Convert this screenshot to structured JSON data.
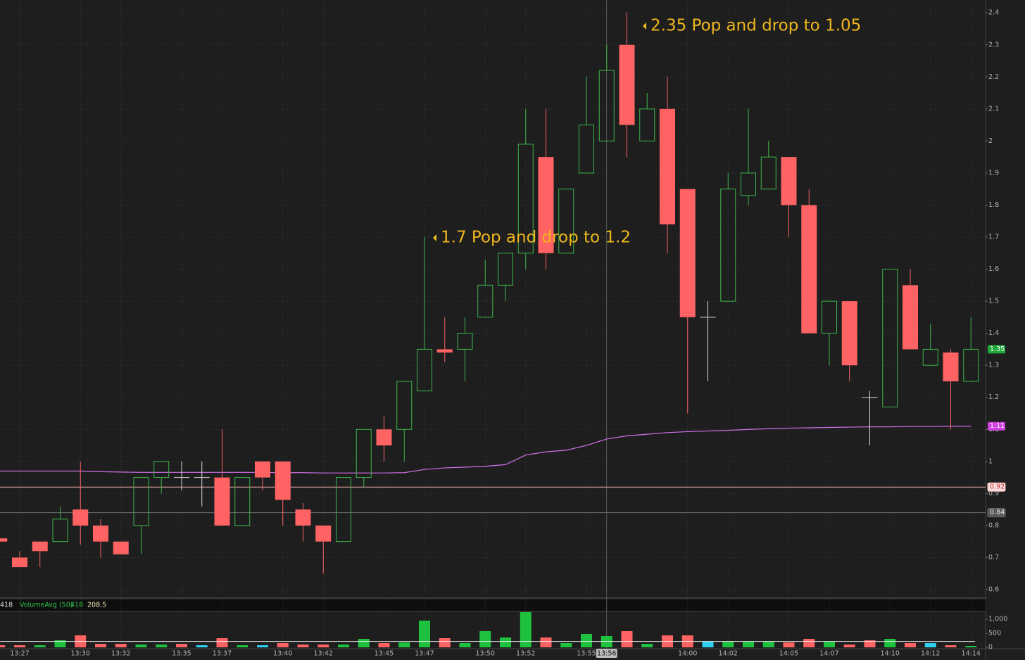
{
  "chart_data": {
    "type": "candlestick",
    "categories": [
      null,
      "13:27",
      null,
      null,
      "13:30",
      null,
      "13:32",
      null,
      null,
      "13:35",
      null,
      "13:37",
      null,
      null,
      "13:40",
      null,
      "13:42",
      null,
      null,
      "13:45",
      null,
      "13:47",
      null,
      null,
      "13:50",
      null,
      "13:52",
      null,
      null,
      "13:55",
      "13:56",
      null,
      null,
      null,
      "14:00",
      null,
      "14:02",
      null,
      null,
      "14:05",
      null,
      "14:07",
      null,
      null,
      "14:10",
      null,
      "14:12",
      null,
      "14:14"
    ],
    "open": [
      0.76,
      0.7,
      0.75,
      0.75,
      0.85,
      0.8,
      0.75,
      0.8,
      0.95,
      0.95,
      0.95,
      0.95,
      0.8,
      1.0,
      1.0,
      0.85,
      0.8,
      0.75,
      0.95,
      1.1,
      1.1,
      1.22,
      1.35,
      1.35,
      1.45,
      1.55,
      1.65,
      1.95,
      1.65,
      1.9,
      2.0,
      2.3,
      2.0,
      2.1,
      1.85,
      1.45,
      1.5,
      1.83,
      1.85,
      1.95,
      1.8,
      1.4,
      1.5,
      1.2,
      1.17,
      1.55,
      1.3,
      1.34,
      1.25
    ],
    "high": [
      0.76,
      0.72,
      0.75,
      0.86,
      1.0,
      0.82,
      0.75,
      0.95,
      1.0,
      1.0,
      1.0,
      1.1,
      0.95,
      1.0,
      1.0,
      0.87,
      0.8,
      0.95,
      1.1,
      1.14,
      1.25,
      1.7,
      1.45,
      1.45,
      1.63,
      1.65,
      2.1,
      2.1,
      1.85,
      2.2,
      2.3,
      2.4,
      2.15,
      2.2,
      1.85,
      1.5,
      1.9,
      2.1,
      2.0,
      1.95,
      1.85,
      1.5,
      1.5,
      1.22,
      1.6,
      1.6,
      1.43,
      1.35,
      1.45
    ],
    "low": [
      0.7,
      0.67,
      0.67,
      0.75,
      0.74,
      0.7,
      0.71,
      0.71,
      0.9,
      0.91,
      0.86,
      0.8,
      0.8,
      0.91,
      0.8,
      0.75,
      0.65,
      0.75,
      0.92,
      1.0,
      1.0,
      1.22,
      1.31,
      1.25,
      1.45,
      1.5,
      1.6,
      1.6,
      1.65,
      1.9,
      2.0,
      1.95,
      2.0,
      1.65,
      1.15,
      1.25,
      1.5,
      1.8,
      1.85,
      1.7,
      1.4,
      1.3,
      1.25,
      1.05,
      1.17,
      1.35,
      1.3,
      1.1,
      1.25
    ],
    "close": [
      0.75,
      0.67,
      0.72,
      0.82,
      0.8,
      0.75,
      0.71,
      0.95,
      1.0,
      0.95,
      0.95,
      0.8,
      0.95,
      0.95,
      0.88,
      0.8,
      0.75,
      0.95,
      1.1,
      1.05,
      1.25,
      1.35,
      1.34,
      1.4,
      1.55,
      1.65,
      1.99,
      1.65,
      1.85,
      2.05,
      2.22,
      2.05,
      2.1,
      1.74,
      1.45,
      1.45,
      1.85,
      1.9,
      1.95,
      1.8,
      1.4,
      1.5,
      1.3,
      1.2,
      1.6,
      1.35,
      1.35,
      1.25,
      1.35
    ],
    "up_color": "#3cb54a",
    "down_color": "#ff6363",
    "doji_color": "#d8d8d8",
    "ylim": [
      0.578,
      2.44
    ],
    "yticks": [
      0.6,
      0.7,
      0.8,
      0.9,
      1,
      1.1,
      1.2,
      1.3,
      1.4,
      1.5,
      1.6,
      1.7,
      1.8,
      1.9,
      2,
      2.1,
      2.2,
      2.3,
      2.4
    ],
    "grid": true,
    "crosshair": 30,
    "moving_average": {
      "color": "#d070e8",
      "values": [
        0.97,
        0.97,
        0.97,
        0.97,
        0.97,
        0.968,
        0.967,
        0.966,
        0.966,
        0.966,
        0.966,
        0.966,
        0.966,
        0.966,
        0.965,
        0.965,
        0.964,
        0.964,
        0.964,
        0.964,
        0.965,
        0.975,
        0.98,
        0.982,
        0.985,
        0.99,
        1.02,
        1.03,
        1.035,
        1.05,
        1.07,
        1.08,
        1.085,
        1.09,
        1.093,
        1.095,
        1.097,
        1.1,
        1.102,
        1.104,
        1.105,
        1.106,
        1.107,
        1.108,
        1.108,
        1.109,
        1.109,
        1.11,
        1.11
      ]
    },
    "levels": [
      0.92,
      0.84
    ],
    "level_colors": [
      "#f0b0b0",
      "#707070"
    ],
    "annotations": [
      "2.35 Pop and drop to 1.05",
      "1.7 Pop and drop to 1.2"
    ],
    "volume": {
      "header": [
        "418",
        "VolumeAvg (50)",
        "418"
      ],
      "average": 208.5,
      "values": [
        75,
        75,
        75,
        250,
        425,
        125,
        125,
        100,
        100,
        125,
        75,
        325,
        75,
        75,
        150,
        100,
        100,
        100,
        300,
        150,
        175,
        950,
        325,
        150,
        575,
        350,
        1250,
        350,
        150,
        475,
        400,
        575,
        125,
        425,
        425,
        200,
        200,
        200,
        200,
        175,
        300,
        200,
        100,
        250,
        300,
        150,
        150,
        75,
        50
      ],
      "colors": [
        "#ff6363",
        "#ff6363",
        "#1fc23f",
        "#1fc23f",
        "#ff6363",
        "#ff6363",
        "#ff6363",
        "#1fc23f",
        "#1fc23f",
        "#ff6363",
        "#2ed2f0",
        "#ff6363",
        "#1fc23f",
        "#2ed2f0",
        "#ff6363",
        "#ff6363",
        "#ff6363",
        "#1fc23f",
        "#1fc23f",
        "#ff6363",
        "#1fc23f",
        "#1fc23f",
        "#ff6363",
        "#1fc23f",
        "#1fc23f",
        "#1fc23f",
        "#1fc23f",
        "#ff6363",
        "#1fc23f",
        "#1fc23f",
        "#1fc23f",
        "#ff6363",
        "#1fc23f",
        "#ff6363",
        "#ff6363",
        "#2ed2f0",
        "#1fc23f",
        "#1fc23f",
        "#1fc23f",
        "#ff6363",
        "#ff6363",
        "#1fc23f",
        "#ff6363",
        "#ff6363",
        "#1fc23f",
        "#ff6363",
        "#2ed2f0",
        "#ff6363",
        "#1fc23f"
      ],
      "ylim": [
        0,
        1300
      ],
      "yticks": [
        0,
        500,
        {
          "value": 1000,
          "label": "1,000"
        }
      ]
    }
  }
}
